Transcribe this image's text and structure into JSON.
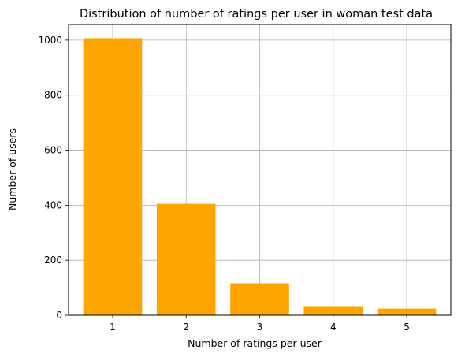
{
  "chart_data": {
    "type": "bar",
    "title": "Distribution of number of ratings per user in woman test data",
    "xlabel": "Number of ratings per user",
    "ylabel": "Number of users",
    "categories": [
      "1",
      "2",
      "3",
      "4",
      "5"
    ],
    "values": [
      1007,
      405,
      116,
      33,
      24
    ],
    "x_ticks": [
      "1",
      "2",
      "3",
      "4",
      "5"
    ],
    "y_ticks": [
      0,
      200,
      400,
      600,
      800,
      1000
    ],
    "ylim": [
      0,
      1057
    ],
    "grid": true,
    "bar_color": "#FFA500"
  }
}
